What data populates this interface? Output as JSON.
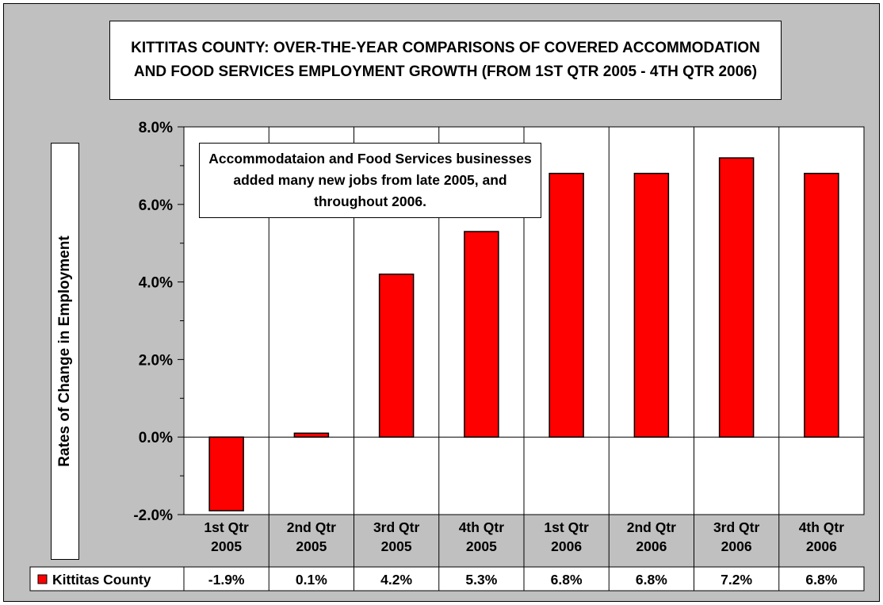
{
  "chart_data": {
    "type": "bar",
    "title": "KITTITAS COUNTY: OVER-THE-YEAR COMPARISONS OF COVERED ACCOMMODATION AND FOOD SERVICES EMPLOYMENT GROWTH (FROM 1ST QTR 2005 - 4TH QTR 2006)",
    "ylabel": "Rates of Change in Employment",
    "xlabel": "",
    "categories": [
      [
        "1st Qtr",
        "2005"
      ],
      [
        "2nd Qtr",
        "2005"
      ],
      [
        "3rd Qtr",
        "2005"
      ],
      [
        "4th Qtr",
        "2005"
      ],
      [
        "1st Qtr",
        "2006"
      ],
      [
        "2nd Qtr",
        "2006"
      ],
      [
        "3rd Qtr",
        "2006"
      ],
      [
        "4th Qtr",
        "2006"
      ]
    ],
    "series": [
      {
        "name": "Kittitas County",
        "color": "#ff0000",
        "values": [
          -1.9,
          0.1,
          4.2,
          5.3,
          6.8,
          6.8,
          7.2,
          6.8
        ],
        "labels": [
          "-1.9%",
          "0.1%",
          "4.2%",
          "5.3%",
          "6.8%",
          "6.8%",
          "7.2%",
          "6.8%"
        ]
      }
    ],
    "ylim": [
      -2.0,
      8.0
    ],
    "yticks": [
      -2.0,
      0.0,
      2.0,
      4.0,
      6.0,
      8.0
    ],
    "ytick_labels": [
      "-2.0%",
      "0.0%",
      "2.0%",
      "4.0%",
      "6.0%",
      "8.0%"
    ],
    "grid": true,
    "data_table": true,
    "annotation": "Accommodataion and Food Services businesses added many new jobs from late 2005, and throughout 2006."
  }
}
